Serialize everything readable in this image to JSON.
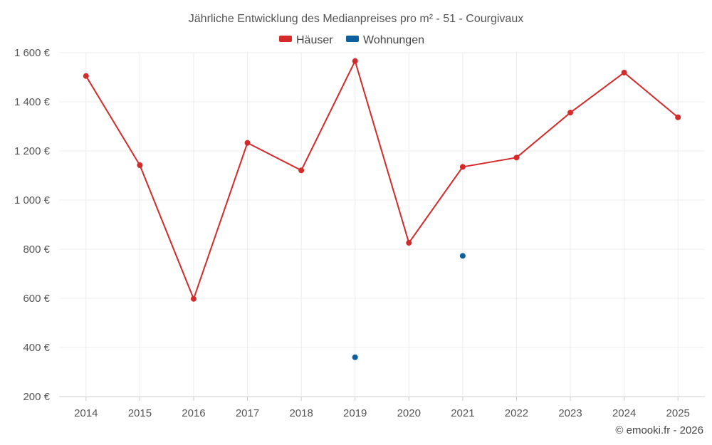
{
  "chart_data": {
    "type": "line",
    "title": "Jährliche Entwicklung des Medianpreises pro m² - 51 - Courgivaux",
    "categories": [
      "2014",
      "2015",
      "2016",
      "2017",
      "2018",
      "2019",
      "2020",
      "2021",
      "2022",
      "2023",
      "2024",
      "2025"
    ],
    "ylim": [
      200,
      1600
    ],
    "yticks": [
      200,
      400,
      600,
      800,
      1000,
      1200,
      1400,
      1600
    ],
    "ytick_labels": [
      "200 €",
      "400 €",
      "600 €",
      "800 €",
      "1 000 €",
      "1 200 €",
      "1 400 €",
      "1 600 €"
    ],
    "grid": true,
    "legend_position": "top-center",
    "series": [
      {
        "name": "Häuser",
        "color": "#d42a2a",
        "line": true,
        "values": [
          1505,
          1142,
          598,
          1233,
          1121,
          1566,
          826,
          1135,
          1173,
          1356,
          1519,
          1337
        ]
      },
      {
        "name": "Wohnungen",
        "color": "#0d5f9e",
        "line": false,
        "values": [
          null,
          null,
          null,
          null,
          null,
          360,
          null,
          773,
          null,
          null,
          null,
          null
        ]
      }
    ]
  },
  "credit": "© emooki.fr - 2026"
}
